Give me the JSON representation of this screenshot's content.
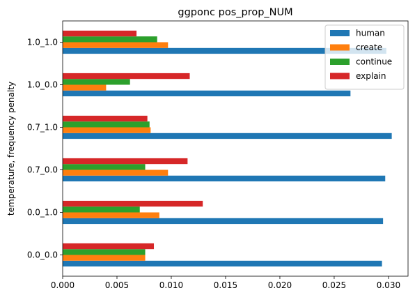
{
  "chart_data": {
    "type": "bar",
    "orientation": "horizontal",
    "title": "ggponc pos_prop_NUM",
    "xlabel": "",
    "ylabel": "temperature, frequency penalty",
    "categories": [
      "0.0_0.0",
      "0.0_1.0",
      "0.7_0.0",
      "0.7_1.0",
      "1.0_0.0",
      "1.0_1.0"
    ],
    "xlim": [
      0,
      0.0318
    ],
    "xticks": [
      0.0,
      0.005,
      0.01,
      0.015,
      0.02,
      0.025,
      0.03
    ],
    "xtick_labels": [
      "0.000",
      "0.005",
      "0.010",
      "0.015",
      "0.020",
      "0.025",
      "0.030"
    ],
    "grid": false,
    "legend_position": "upper right",
    "series": [
      {
        "name": "human",
        "color": "#1f77b4",
        "values": [
          0.0294,
          0.0295,
          0.0297,
          0.0303,
          0.0265,
          0.0298
        ]
      },
      {
        "name": "create",
        "color": "#ff7f0e",
        "values": [
          0.0076,
          0.0089,
          0.0097,
          0.0081,
          0.004,
          0.0097
        ]
      },
      {
        "name": "continue",
        "color": "#2ca02c",
        "values": [
          0.0076,
          0.0071,
          0.0076,
          0.008,
          0.0062,
          0.0087
        ]
      },
      {
        "name": "explain",
        "color": "#d62728",
        "values": [
          0.0084,
          0.0129,
          0.0115,
          0.0078,
          0.0117,
          0.0068
        ]
      }
    ]
  }
}
